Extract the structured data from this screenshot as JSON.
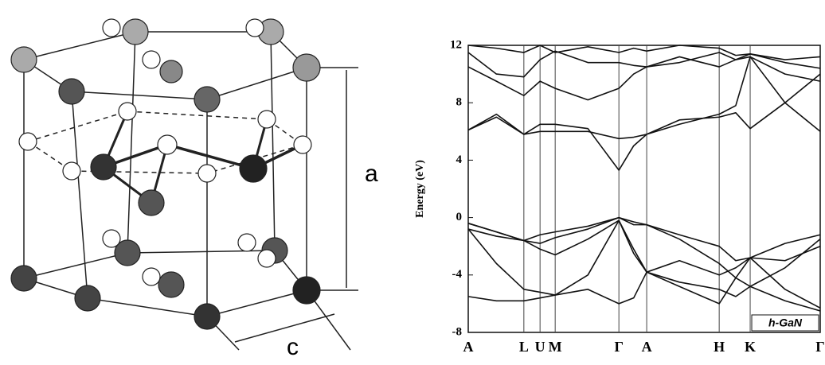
{
  "diagram": {
    "label_a": "a",
    "label_c": "c"
  },
  "chart_data": {
    "type": "line",
    "y_label": "Energy (eV)",
    "inset_label": "h-GaN",
    "kpoints": [
      {
        "value": 0,
        "label": "A"
      },
      {
        "value": 15.8,
        "label": "L"
      },
      {
        "value": 20.4,
        "label": "U"
      },
      {
        "value": 24.7,
        "label": "M"
      },
      {
        "value": 42.8,
        "label": "Γ"
      },
      {
        "value": 50.7,
        "label": "A"
      },
      {
        "value": 71.3,
        "label": "H"
      },
      {
        "value": 80.1,
        "label": "K"
      },
      {
        "value": 100,
        "label": "Γ"
      }
    ],
    "xlim": [
      0,
      100
    ],
    "ylim": [
      -8,
      12
    ],
    "yticks": [
      -8,
      -4,
      0,
      4,
      8,
      12
    ],
    "x": [
      0,
      8,
      15.8,
      20.4,
      24.7,
      34,
      42.8,
      47,
      50.7,
      60,
      71.3,
      76,
      80.1,
      90,
      100
    ],
    "series": [
      {
        "color": "#111111",
        "values": [
          -0.4,
          -1.0,
          -1.6,
          -1.2,
          -1.0,
          -0.6,
          0,
          -0.3,
          -0.5,
          -1.2,
          -2.0,
          -3.0,
          -2.8,
          -1.8,
          -1.2
        ]
      },
      {
        "color": "#111111",
        "values": [
          -0.4,
          -1.0,
          -1.6,
          -1.8,
          -1.4,
          -0.8,
          0,
          -0.5,
          -0.5,
          -1.5,
          -3.2,
          -4.2,
          -4.8,
          -3.5,
          -1.5
        ]
      },
      {
        "color": "#111111",
        "values": [
          -0.8,
          -1.3,
          -1.6,
          -2.2,
          -2.6,
          -1.5,
          -0.2,
          -2.5,
          -3.8,
          -3.0,
          -4.0,
          -3.5,
          -2.8,
          -3.0,
          -2.0
        ]
      },
      {
        "color": "#111111",
        "values": [
          -0.8,
          -3.2,
          -5.0,
          -5.2,
          -5.4,
          -4.0,
          -0.2,
          -2.2,
          -3.8,
          -4.5,
          -5.0,
          -5.5,
          -4.8,
          -5.8,
          -6.5
        ]
      },
      {
        "color": "#111111",
        "values": [
          -5.5,
          -5.8,
          -5.8,
          -5.6,
          -5.4,
          -5.0,
          -6.0,
          -5.6,
          -3.8,
          -4.8,
          -6.0,
          -4.2,
          -2.8,
          -5.0,
          -6.3
        ]
      },
      {
        "color": "#111111",
        "values": [
          6.1,
          7.0,
          5.8,
          6.5,
          6.5,
          6.2,
          3.3,
          5.0,
          5.8,
          6.5,
          7.2,
          7.8,
          11.2,
          8.0,
          6.0
        ]
      },
      {
        "color": "#111111",
        "values": [
          6.1,
          7.2,
          5.8,
          6.0,
          6.0,
          6.0,
          5.5,
          5.6,
          5.8,
          6.8,
          7.0,
          7.3,
          6.2,
          8.0,
          10.0
        ]
      },
      {
        "color": "#111111",
        "values": [
          10.5,
          9.5,
          8.5,
          9.5,
          9.0,
          8.2,
          9.0,
          10.0,
          10.5,
          11.2,
          10.5,
          11.0,
          11.2,
          10.0,
          9.5
        ]
      },
      {
        "color": "#111111",
        "values": [
          11.5,
          10.0,
          9.8,
          11.0,
          11.6,
          10.8,
          10.8,
          10.6,
          10.5,
          10.8,
          11.5,
          11.0,
          11.4,
          11.0,
          11.2
        ]
      },
      {
        "color": "#111111",
        "values": [
          12,
          11.8,
          11.5,
          12,
          11.5,
          11.9,
          11.5,
          11.8,
          11.6,
          12,
          11.8,
          11.3,
          11.4,
          10.8,
          10.4
        ]
      }
    ]
  }
}
